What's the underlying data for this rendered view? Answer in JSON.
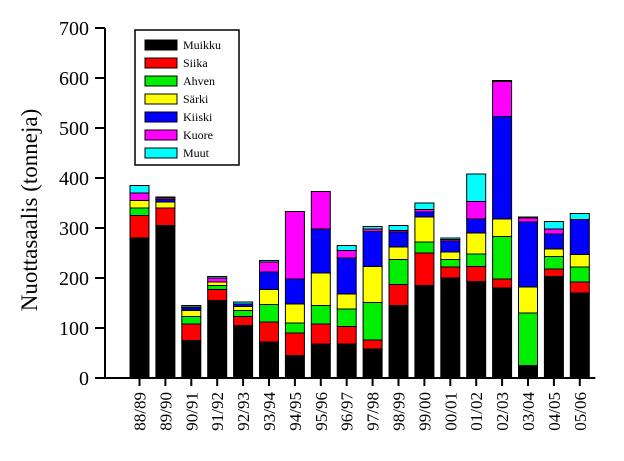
{
  "chart_data": {
    "type": "bar",
    "stacked": true,
    "ylabel": "Nuottasaalis (tonneja)",
    "ylim": [
      0,
      700
    ],
    "yticks": [
      0,
      100,
      200,
      300,
      400,
      500,
      600,
      700
    ],
    "grid": false,
    "legend_position": "top-left",
    "categories": [
      "88/89",
      "89/90",
      "90/91",
      "91/92",
      "92/93",
      "93/94",
      "94/95",
      "95/96",
      "96/97",
      "97/98",
      "98/99",
      "99/00",
      "00/01",
      "01/02",
      "02/03",
      "03/04",
      "04/05",
      "05/06"
    ],
    "series": [
      {
        "name": "Muikku",
        "color": "#000000",
        "values": [
          280,
          305,
          75,
          155,
          105,
          72,
          45,
          68,
          68,
          58,
          145,
          185,
          200,
          193,
          180,
          25,
          203,
          170
        ]
      },
      {
        "name": "Siika",
        "color": "#ff0000",
        "values": [
          45,
          35,
          33,
          22,
          18,
          40,
          45,
          40,
          35,
          18,
          42,
          65,
          22,
          30,
          18,
          0,
          15,
          22
        ]
      },
      {
        "name": "Ahven",
        "color": "#00ee00",
        "values": [
          15,
          0,
          15,
          8,
          12,
          35,
          20,
          37,
          35,
          75,
          50,
          22,
          15,
          25,
          85,
          105,
          25,
          30
        ]
      },
      {
        "name": "Särki",
        "color": "#ffff00",
        "values": [
          15,
          12,
          12,
          7,
          8,
          30,
          38,
          65,
          30,
          72,
          25,
          50,
          15,
          42,
          35,
          52,
          15,
          25
        ]
      },
      {
        "name": "Kiiski",
        "color": "#0000ff",
        "values": [
          0,
          5,
          5,
          0,
          5,
          35,
          50,
          88,
          72,
          70,
          30,
          10,
          22,
          28,
          205,
          130,
          30,
          70
        ]
      },
      {
        "name": "Kuore",
        "color": "#ff00ff",
        "values": [
          15,
          3,
          2,
          8,
          0,
          20,
          135,
          75,
          15,
          5,
          3,
          5,
          3,
          35,
          70,
          8,
          10,
          0
        ]
      },
      {
        "name": "Muut",
        "color": "#00ffff",
        "values": [
          15,
          2,
          3,
          3,
          4,
          3,
          0,
          0,
          10,
          5,
          10,
          13,
          3,
          55,
          2,
          2,
          15,
          12
        ]
      }
    ]
  }
}
